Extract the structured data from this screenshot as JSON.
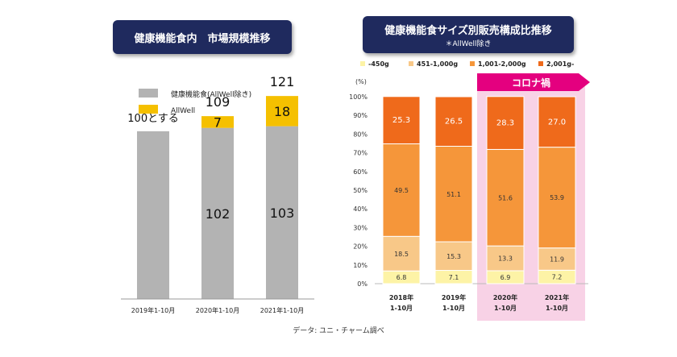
{
  "left": {
    "title": "健康機能食内　市場規模推移",
    "legend": [
      "健康機能食(AllWell除き)",
      "AllWell"
    ],
    "chart_data": {
      "type": "bar",
      "stacked": true,
      "categories": [
        "2019年1-10月",
        "2020年1-10月",
        "2021年1-10月"
      ],
      "series": [
        {
          "name": "健康機能食(AllWell除き)",
          "values": [
            100,
            102,
            103
          ],
          "color": "#b3b3b3"
        },
        {
          "name": "AllWell",
          "values": [
            0,
            7,
            18
          ],
          "color": "#f5c000"
        }
      ],
      "segment_labels": [
        [
          "100とする",
          ""
        ],
        [
          "102",
          "7"
        ],
        [
          "103",
          "18"
        ]
      ],
      "totals": [
        "",
        "109",
        "121"
      ],
      "ylim": [
        0,
        135
      ]
    }
  },
  "right": {
    "title": "健康機能食サイズ別販売構成比推移",
    "subtitle": "＊AllWell除き",
    "legend": [
      "-450g",
      "451-1,000g",
      "1,001-2,000g",
      "2,001g-"
    ],
    "callout": "コロナ禍",
    "ylabel": "(%)",
    "yticks": [
      "0%",
      "10%",
      "20%",
      "30%",
      "40%",
      "50%",
      "60%",
      "70%",
      "80%",
      "90%",
      "100%"
    ],
    "chart_data": {
      "type": "bar",
      "stacked": true,
      "categories": [
        [
          "2018年",
          "1-10月"
        ],
        [
          "2019年",
          "1-10月"
        ],
        [
          "2020年",
          "1-10月"
        ],
        [
          "2021年",
          "1-10月"
        ]
      ],
      "series": [
        {
          "name": "-450g",
          "values": [
            6.8,
            7.1,
            6.9,
            7.2
          ],
          "color": "#fdf3a6"
        },
        {
          "name": "451-1,000g",
          "values": [
            18.5,
            15.3,
            13.3,
            11.9
          ],
          "color": "#f8c888"
        },
        {
          "name": "1,001-2,000g",
          "values": [
            49.5,
            51.1,
            51.6,
            53.9
          ],
          "color": "#f5963a"
        },
        {
          "name": "2,001g-",
          "values": [
            25.3,
            26.5,
            28.3,
            27.0
          ],
          "color": "#ef6a1b"
        }
      ],
      "value_labels": [
        [
          "6.8",
          "18.5",
          "49.5",
          "25.3"
        ],
        [
          "7.1",
          "15.3",
          "51.1",
          "26.5"
        ],
        [
          "6.9",
          "13.3",
          "51.6",
          "28.3"
        ],
        [
          "7.2",
          "11.9",
          "53.9",
          "27.0"
        ]
      ],
      "ylim": [
        0,
        100
      ],
      "highlight_categories": [
        2,
        3
      ],
      "highlight_color": "#f8d2e6",
      "callout_color": "#e4007f"
    }
  },
  "source": "データ: ユニ・チャーム調べ"
}
